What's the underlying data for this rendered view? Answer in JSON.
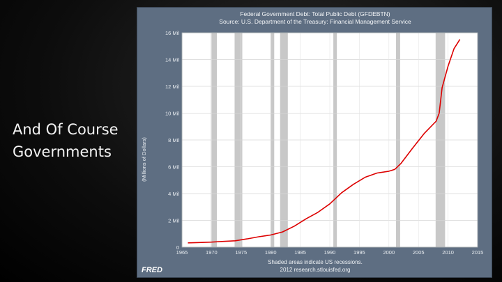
{
  "slide": {
    "text_lines": [
      "And Of Course",
      "Governments"
    ]
  },
  "branding": {
    "logo_text": "FRED"
  },
  "chart_data": {
    "type": "line",
    "title": "Federal Government Debt: Total Public Debt (GFDEBTN)",
    "subtitle": "Source: U.S. Department of the Treasury: Financial Management Service",
    "ylabel": "(Millions of Dollars)",
    "xlabel": "",
    "xlim": [
      1965,
      2015
    ],
    "ylim": [
      0,
      16000000
    ],
    "x_ticks": [
      "1965",
      "1970",
      "1975",
      "1980",
      "1985",
      "1990",
      "1995",
      "2000",
      "2005",
      "2010",
      "2015"
    ],
    "y_ticks": [
      "0",
      "2 Mil",
      "4 Mil",
      "6 Mil",
      "8 Mil",
      "10 Mil",
      "12 Mil",
      "14 Mil",
      "16 Mil"
    ],
    "y_tick_values": [
      0,
      2000000,
      4000000,
      6000000,
      8000000,
      10000000,
      12000000,
      14000000,
      16000000
    ],
    "x_tick_values": [
      1965,
      1970,
      1975,
      1980,
      1985,
      1990,
      1995,
      2000,
      2005,
      2010,
      2015
    ],
    "grid": true,
    "line_color": "#dd0000",
    "recession_color": "#c8c8c8",
    "recessions": [
      [
        1969.9,
        1970.9
      ],
      [
        1973.9,
        1975.2
      ],
      [
        1980.0,
        1980.6
      ],
      [
        1981.6,
        1982.9
      ],
      [
        1990.6,
        1991.2
      ],
      [
        2001.2,
        2001.9
      ],
      [
        2007.9,
        2009.5
      ]
    ],
    "series": [
      {
        "x": [
          1966,
          1968,
          1970,
          1972,
          1974,
          1976,
          1978,
          1980,
          1982,
          1984,
          1986,
          1988,
          1990,
          1992,
          1994,
          1996,
          1998,
          2000,
          2001,
          2002,
          2004,
          2006,
          2008,
          2008.5,
          2009,
          2010,
          2011,
          2012
        ],
        "values": [
          320000,
          350000,
          380000,
          430000,
          480000,
          620000,
          780000,
          910000,
          1140000,
          1570000,
          2120000,
          2600000,
          3230000,
          4060000,
          4690000,
          5220000,
          5530000,
          5670000,
          5810000,
          6230000,
          7380000,
          8500000,
          9400000,
          10000000,
          11900000,
          13500000,
          14800000,
          15500000
        ]
      }
    ],
    "footnote_1": "Shaded areas indicate US recessions.",
    "footnote_2": "2012 research.stlouisfed.org"
  }
}
